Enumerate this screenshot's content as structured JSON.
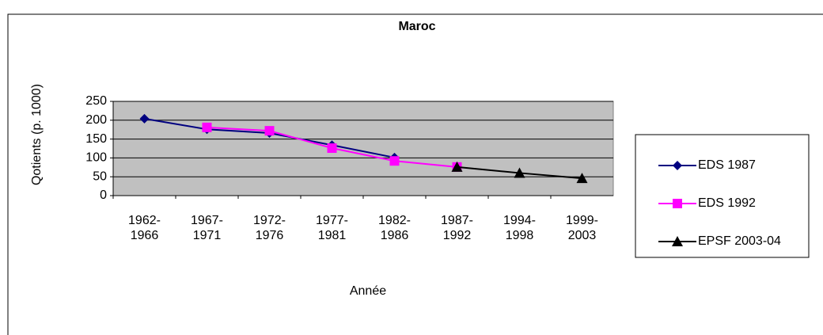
{
  "chart_data": {
    "type": "line",
    "title": "Maroc",
    "xlabel": "Année",
    "ylabel": "Qotients (p. 1000)",
    "categories": [
      "1962-1966",
      "1967-1971",
      "1972-1976",
      "1977-1981",
      "1982-1986",
      "1987-1992",
      "1994-1998",
      "1999-2003"
    ],
    "series": [
      {
        "name": "EDS 1987",
        "color": "#000080",
        "marker": "diamond",
        "values": [
          204,
          176,
          166,
          134,
          101,
          null,
          null,
          null
        ]
      },
      {
        "name": "EDS 1992",
        "color": "#ff00ff",
        "marker": "square",
        "values": [
          null,
          181,
          172,
          126,
          92,
          76,
          null,
          null
        ]
      },
      {
        "name": "EPSF 2003-04",
        "color": "#000000",
        "marker": "triangle",
        "values": [
          null,
          null,
          null,
          null,
          null,
          76,
          60,
          46
        ]
      }
    ],
    "ylim": [
      0,
      250
    ],
    "yticks": [
      0,
      50,
      100,
      150,
      200,
      250
    ],
    "grid": true,
    "legend": "right",
    "plot_background": "#c0c0c0"
  }
}
